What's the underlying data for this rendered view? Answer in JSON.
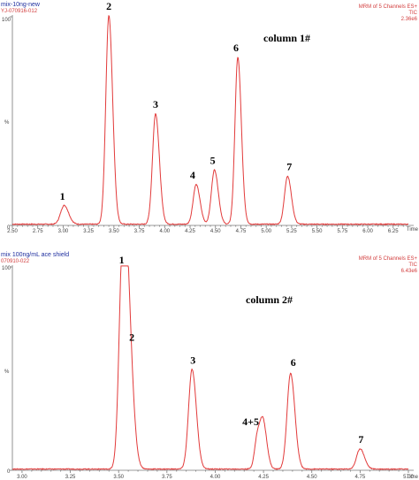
{
  "chart_data": [
    {
      "type": "line",
      "title": "mix-10ng-new",
      "sample_id": "YJ-070916-012",
      "info": [
        "MRM of 5 Channels ES+",
        "TIC",
        "2.36e6"
      ],
      "annotation": "column 1#",
      "xlabel": "Time",
      "xlim": [
        2.5,
        6.4
      ],
      "ylim": [
        0,
        100
      ],
      "x_ticks": [
        "2.50",
        "2.75",
        "3.00",
        "3.25",
        "3.50",
        "3.75",
        "4.00",
        "4.25",
        "4.50",
        "4.75",
        "5.00",
        "5.25",
        "5.50",
        "5.75",
        "6.00",
        "6.25"
      ],
      "y_ticks": [
        "0",
        "100"
      ],
      "y_unit_label": "%",
      "peaks": [
        {
          "label": "1",
          "x": 3.01,
          "y": 9,
          "width": 0.035
        },
        {
          "label": "2",
          "x": 3.45,
          "y": 100,
          "width": 0.03
        },
        {
          "label": "3",
          "x": 3.91,
          "y": 53,
          "width": 0.03
        },
        {
          "label": "4",
          "x": 4.31,
          "y": 19,
          "width": 0.03
        },
        {
          "label": "5",
          "x": 4.49,
          "y": 26,
          "width": 0.03
        },
        {
          "label": "6",
          "x": 4.72,
          "y": 80,
          "width": 0.028
        },
        {
          "label": "7",
          "x": 5.21,
          "y": 23,
          "width": 0.03
        }
      ]
    },
    {
      "type": "line",
      "title": "mix 100ng/mL ace shield",
      "sample_id": "070910-022",
      "info": [
        "MRM of 5 Channels ES+",
        "TIC",
        "6.43e6"
      ],
      "annotation": "column 2#",
      "xlabel": "Time",
      "xlim": [
        2.45,
        4.5
      ],
      "ylim": [
        0,
        100
      ],
      "x_ticks": [
        "2.50",
        "2.75",
        "3.00",
        "3.25",
        "3.50",
        "3.75",
        "4.00",
        "4.25",
        "4.50"
      ],
      "x_ticks_display": [
        "3.00",
        "3.25",
        "3.50",
        "3.75",
        "4.00",
        "4.25",
        "4.50",
        "4.75",
        "5.00"
      ],
      "y_ticks": [
        "0",
        "100"
      ],
      "y_unit_label": "%",
      "peaks": [
        {
          "label": "1",
          "x": 3.02,
          "y": 100,
          "width": 0.018
        },
        {
          "label": "2",
          "x": 3.05,
          "y": 61,
          "width": 0.02
        },
        {
          "label": "3",
          "x": 3.38,
          "y": 49,
          "width": 0.018
        },
        {
          "label": "4+5",
          "x": 3.72,
          "y": 17,
          "width": 0.015
        },
        {
          "label": "",
          "x": 3.75,
          "y": 20,
          "width": 0.015
        },
        {
          "label": "6",
          "x": 3.89,
          "y": 47,
          "width": 0.018
        },
        {
          "label": "7",
          "x": 4.25,
          "y": 10,
          "width": 0.018
        }
      ]
    }
  ]
}
